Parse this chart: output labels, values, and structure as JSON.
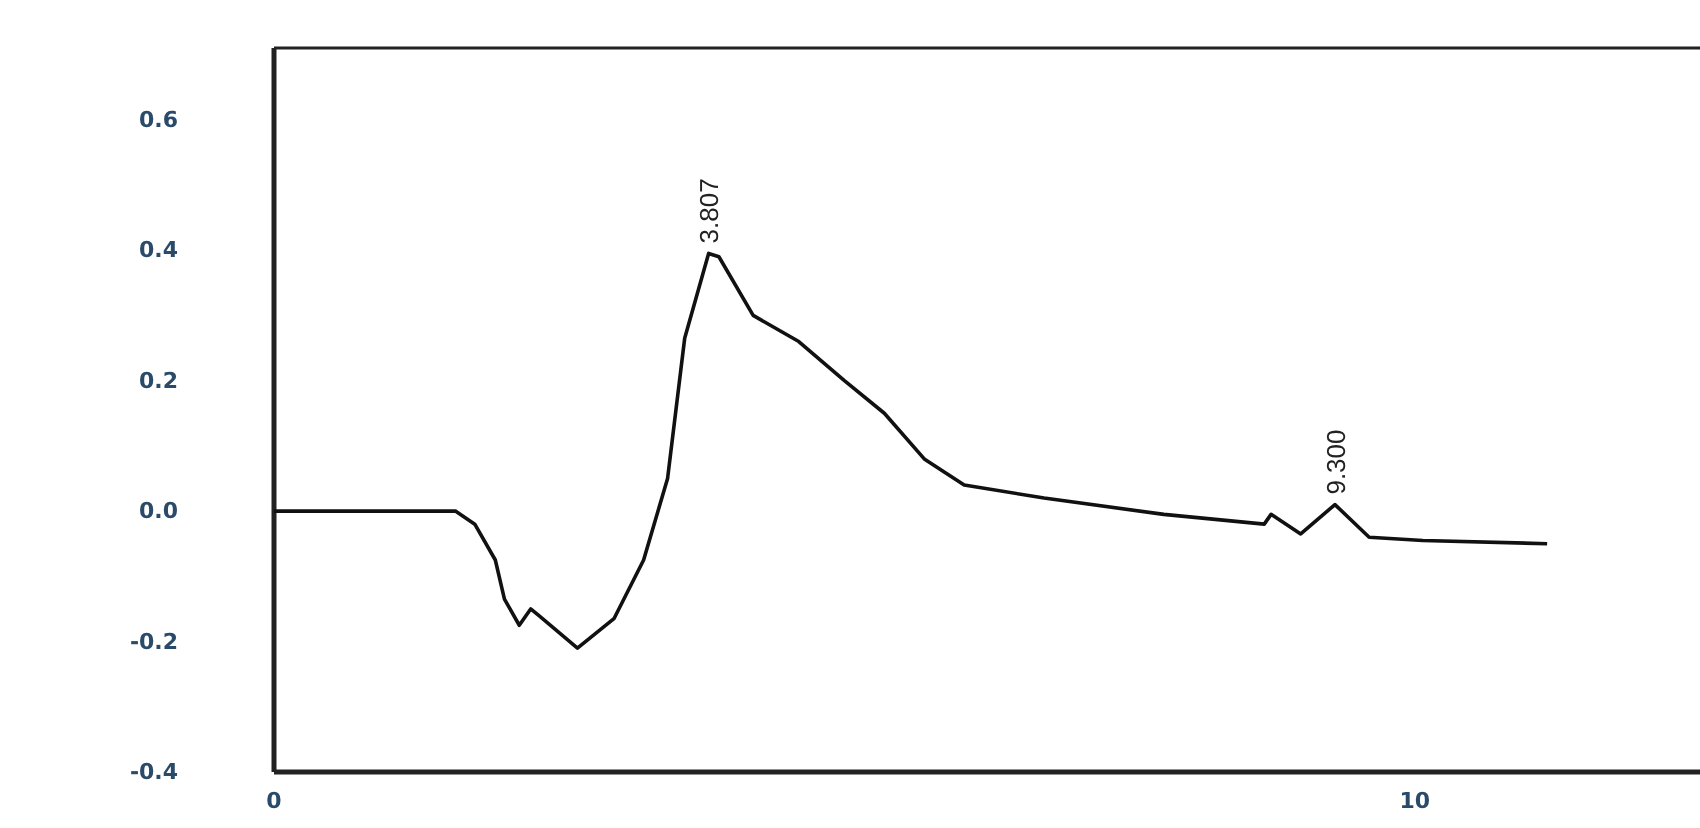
{
  "chart_data": {
    "type": "line",
    "x": [
      0,
      1.59,
      1.76,
      1.94,
      2.02,
      2.15,
      2.25,
      2.32,
      2.66,
      2.98,
      3.24,
      3.45,
      3.6,
      3.81,
      3.9,
      4.2,
      4.6,
      5.0,
      5.35,
      5.7,
      6.05,
      6.75,
      7.8,
      8.68,
      8.74,
      9.0,
      9.3,
      9.6,
      10.07,
      11.16
    ],
    "series": [
      {
        "color": "#111111",
        "values": [
          0,
          0,
          -0.02,
          -0.075,
          -0.135,
          -0.175,
          -0.15,
          -0.16,
          -0.21,
          -0.165,
          -0.075,
          0.05,
          0.265,
          0.395,
          0.39,
          0.3,
          0.26,
          0.2,
          0.15,
          0.08,
          0.04,
          0.02,
          -0.005,
          -0.02,
          -0.005,
          -0.035,
          0.01,
          -0.04,
          -0.045,
          -0.05
        ]
      }
    ],
    "xlim": [
      0,
      12.5
    ],
    "xticks": [
      0,
      10
    ],
    "ylim": [
      -0.4,
      0.71
    ],
    "yticks": [
      -0.4,
      -0.2,
      {
        "value": 0,
        "label": "0.0"
      },
      0.2,
      0.4,
      0.6
    ],
    "annotations": [
      {
        "text": "3.807",
        "x": 3.807,
        "y": 0.395
      },
      {
        "text": "9.300",
        "x": 9.3,
        "y": 0.01
      }
    ],
    "grid": false
  }
}
